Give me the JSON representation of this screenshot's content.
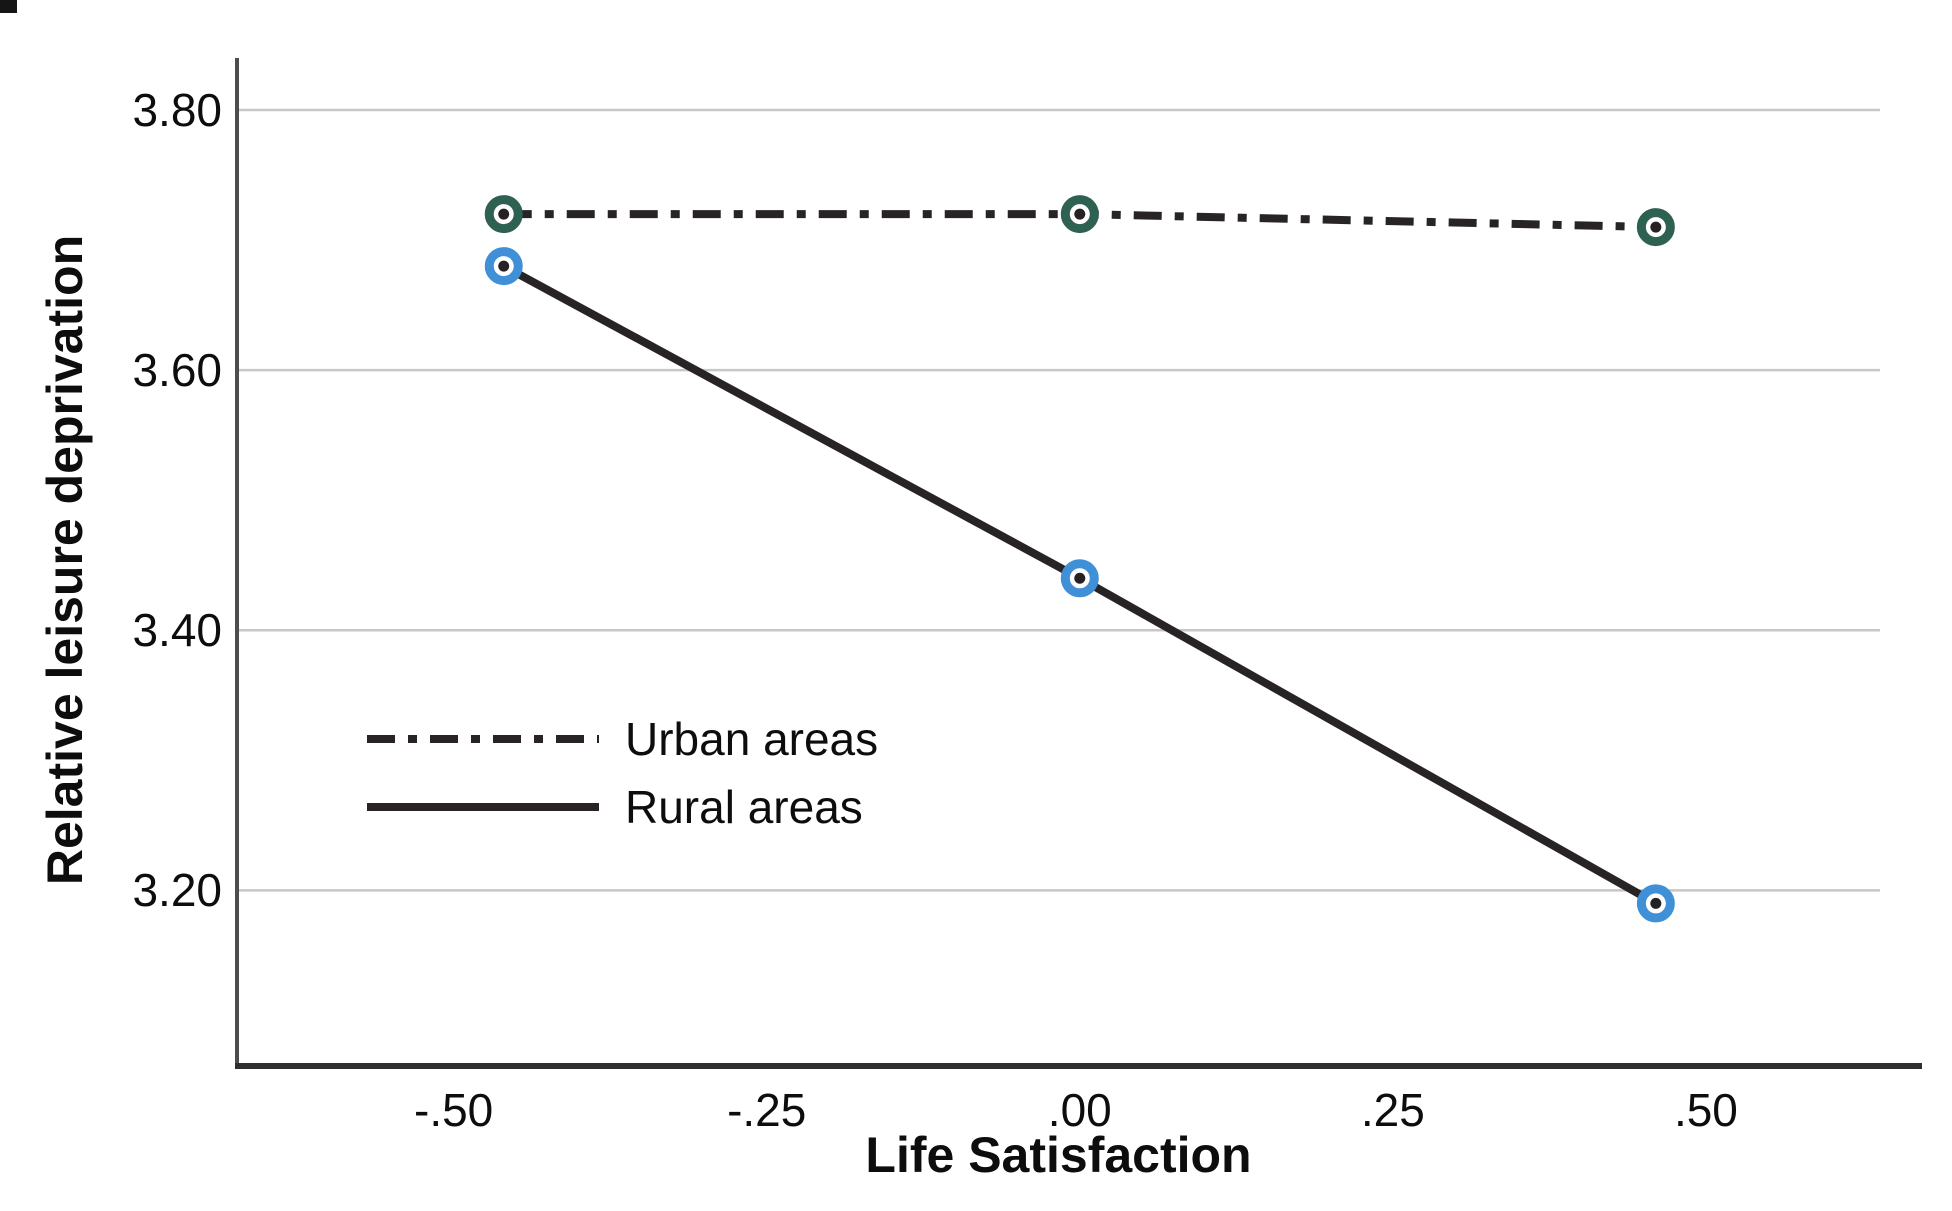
{
  "figure": {
    "background": "#ffffff"
  },
  "chart_data": {
    "type": "line",
    "title": "",
    "xlabel": "Life Satisfaction",
    "ylabel": "Relative leisure deprivation",
    "x": [
      -0.46,
      0.0,
      0.46
    ],
    "series": [
      {
        "name": "Urban areas",
        "values": [
          3.72,
          3.72,
          3.71
        ],
        "line_style": "dash-dot",
        "line_color": "#282425",
        "marker": "circle-dot",
        "marker_color": "#2e6152"
      },
      {
        "name": "Rural areas",
        "values": [
          3.68,
          3.44,
          3.19
        ],
        "line_style": "solid",
        "line_color": "#282425",
        "marker": "circle-dot",
        "marker_color": "#3f90d6"
      }
    ],
    "x_ticks": [
      {
        "value": -0.5,
        "label": "-.50"
      },
      {
        "value": -0.25,
        "label": "-.25"
      },
      {
        "value": 0.0,
        "label": ".00"
      },
      {
        "value": 0.25,
        "label": ".25"
      },
      {
        "value": 0.5,
        "label": ".50"
      }
    ],
    "y_ticks": [
      {
        "value": 3.2,
        "label": "3.20"
      },
      {
        "value": 3.4,
        "label": "3.40"
      },
      {
        "value": 3.6,
        "label": "3.60"
      },
      {
        "value": 3.8,
        "label": "3.80"
      }
    ],
    "xlim": [
      -0.673,
      0.639
    ],
    "ylim": [
      3.065,
      3.84
    ],
    "grid": "horizontal",
    "grid_color": "#c7c7c7",
    "y_axis_color": "#4d4d4d",
    "x_axis_color": "#2f2f2f",
    "marker_dot_color": "#262223",
    "text_color": "#0d0d0d",
    "legend_position": "inside-left-middle"
  }
}
